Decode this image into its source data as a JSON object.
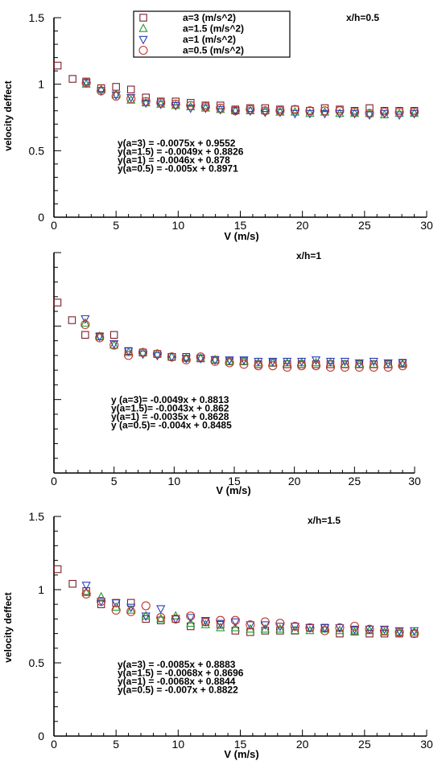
{
  "chart_data": [
    {
      "type": "scatter",
      "title": "x/h=0.5",
      "xlabel": "V (m/s)",
      "ylabel": "velocity deffect",
      "xlim": [
        0,
        30
      ],
      "ylim": [
        0,
        1.5
      ],
      "xticks": [
        0,
        5,
        10,
        15,
        20,
        25,
        30
      ],
      "yticks": [
        0,
        0.5,
        1,
        1.5
      ],
      "show_ytick_labels": true,
      "legend": {
        "position": "top",
        "entries": [
          "a=3 (m/s^2)",
          "a=1.5 (m/s^2)",
          "a=1 (m/s^2)",
          "a=0.5 (m/s^2)"
        ]
      },
      "equations": [
        "y(a=3) = -0.0075x + 0.9552",
        "y(a=1.5) = -0.0049x + 0.8826",
        "y(a=1) = -0.0046x + 0.878",
        "y(a=0.5) = -0.005x + 0.8971"
      ],
      "series": [
        {
          "name": "a=3 (m/s^2)",
          "marker": "square",
          "color": "#7a1f2b",
          "x": [
            0.3,
            1.5,
            2.6,
            3.8,
            5.0,
            6.2,
            7.4,
            8.6,
            9.8,
            11.0,
            12.2,
            13.4,
            14.6,
            15.8,
            17.0,
            18.2,
            19.4,
            20.6,
            21.8,
            23.0,
            24.2,
            25.4,
            26.6,
            27.8,
            29.0
          ],
          "y": [
            1.14,
            1.04,
            1.02,
            0.97,
            0.98,
            0.96,
            0.9,
            0.87,
            0.87,
            0.86,
            0.84,
            0.84,
            0.81,
            0.82,
            0.82,
            0.81,
            0.81,
            0.8,
            0.82,
            0.81,
            0.8,
            0.82,
            0.8,
            0.8,
            0.8
          ]
        },
        {
          "name": "a=1.5 (m/s^2)",
          "marker": "triangle-up",
          "color": "#1f9e2c",
          "x": [
            2.6,
            3.8,
            5.0,
            6.2,
            7.4,
            8.6,
            9.8,
            11.0,
            12.2,
            13.4,
            14.6,
            15.8,
            17.0,
            18.2,
            19.4,
            20.6,
            21.8,
            23.0,
            24.2,
            25.4,
            26.6,
            27.8,
            29.0
          ],
          "y": [
            1.0,
            0.96,
            0.92,
            0.88,
            0.86,
            0.85,
            0.84,
            0.83,
            0.82,
            0.81,
            0.8,
            0.8,
            0.8,
            0.79,
            0.79,
            0.78,
            0.79,
            0.78,
            0.78,
            0.78,
            0.77,
            0.78,
            0.78
          ]
        },
        {
          "name": "a=1 (m/s^2)",
          "marker": "triangle-down",
          "color": "#2c3fb8",
          "x": [
            2.6,
            3.8,
            5.0,
            6.2,
            7.4,
            8.6,
            9.8,
            11.0,
            12.2,
            13.4,
            14.6,
            15.8,
            17.0,
            18.2,
            19.4,
            20.6,
            21.8,
            23.0,
            24.2,
            25.4,
            26.6,
            27.8,
            29.0
          ],
          "y": [
            1.01,
            0.95,
            0.92,
            0.9,
            0.86,
            0.85,
            0.84,
            0.82,
            0.82,
            0.81,
            0.8,
            0.8,
            0.79,
            0.79,
            0.78,
            0.78,
            0.78,
            0.78,
            0.78,
            0.77,
            0.78,
            0.77,
            0.78
          ]
        },
        {
          "name": "a=0.5 (m/s^2)",
          "marker": "circle",
          "color": "#c0392b",
          "x": [
            2.6,
            3.8,
            5.0,
            6.2,
            7.4,
            8.6,
            9.8,
            11.0,
            12.2,
            13.4,
            14.6,
            15.8,
            17.0,
            18.2,
            19.4,
            20.6,
            21.8,
            23.0,
            24.2,
            25.4,
            26.6,
            27.8,
            29.0
          ],
          "y": [
            1.01,
            0.95,
            0.91,
            0.89,
            0.87,
            0.86,
            0.85,
            0.84,
            0.83,
            0.82,
            0.8,
            0.81,
            0.8,
            0.8,
            0.81,
            0.8,
            0.8,
            0.8,
            0.79,
            0.78,
            0.79,
            0.79,
            0.79
          ]
        }
      ]
    },
    {
      "type": "scatter",
      "title": "x/h=1",
      "xlabel": "V (m/s)",
      "ylabel": "",
      "xlim": [
        0,
        30
      ],
      "ylim": [
        0,
        1.5
      ],
      "xticks": [
        0,
        5,
        10,
        15,
        20,
        25,
        30
      ],
      "yticks": [
        0,
        0.5,
        1,
        1.5
      ],
      "show_ytick_labels": false,
      "equations": [
        "y (a=3)= -0.0049x + 0.8813",
        "y(a=1.5)= -0.0043x + 0.862",
        "y(a=1) = -0.0035x + 0.8628",
        "y (a=0.5)= -0.004x + 0.8485"
      ],
      "series": [
        {
          "name": "a=3 (m/s^2)",
          "marker": "square",
          "color": "#7a1f2b",
          "x": [
            0.3,
            1.5,
            2.6,
            3.8,
            5.0,
            6.2,
            7.4,
            8.6,
            9.8,
            11.0,
            12.2,
            13.4,
            14.6,
            15.8,
            17.0,
            18.2,
            19.4,
            20.6,
            21.8,
            23.0,
            24.2,
            25.4,
            26.6,
            27.8,
            29.0
          ],
          "y": [
            1.16,
            1.04,
            0.94,
            0.93,
            0.94,
            0.83,
            0.82,
            0.81,
            0.79,
            0.79,
            0.78,
            0.77,
            0.76,
            0.76,
            0.74,
            0.75,
            0.74,
            0.74,
            0.74,
            0.74,
            0.74,
            0.74,
            0.74,
            0.74,
            0.75
          ]
        },
        {
          "name": "a=1.5 (m/s^2)",
          "marker": "triangle-up",
          "color": "#1f9e2c",
          "x": [
            2.6,
            3.8,
            5.0,
            6.2,
            7.4,
            8.6,
            9.8,
            11.0,
            12.2,
            13.4,
            14.6,
            15.8,
            17.0,
            18.2,
            19.4,
            20.6,
            21.8,
            23.0,
            24.2,
            25.4,
            26.6,
            27.8,
            29.0
          ],
          "y": [
            1.02,
            0.93,
            0.87,
            0.82,
            0.82,
            0.81,
            0.79,
            0.78,
            0.78,
            0.77,
            0.76,
            0.76,
            0.75,
            0.75,
            0.75,
            0.75,
            0.75,
            0.75,
            0.74,
            0.74,
            0.74,
            0.74,
            0.74
          ]
        },
        {
          "name": "a=1 (m/s^2)",
          "marker": "triangle-down",
          "color": "#2c3fb8",
          "x": [
            2.6,
            3.8,
            5.0,
            6.2,
            7.4,
            8.6,
            9.8,
            11.0,
            12.2,
            13.4,
            14.6,
            15.8,
            17.0,
            18.2,
            19.4,
            20.6,
            21.8,
            23.0,
            24.2,
            25.4,
            26.6,
            27.8,
            29.0
          ],
          "y": [
            1.05,
            0.93,
            0.88,
            0.83,
            0.81,
            0.8,
            0.79,
            0.78,
            0.78,
            0.77,
            0.77,
            0.77,
            0.76,
            0.76,
            0.76,
            0.76,
            0.77,
            0.76,
            0.76,
            0.75,
            0.76,
            0.75,
            0.75
          ]
        },
        {
          "name": "a=0.5 (m/s^2)",
          "marker": "circle",
          "color": "#c0392b",
          "x": [
            2.6,
            3.8,
            5.0,
            6.2,
            7.4,
            8.6,
            9.8,
            11.0,
            12.2,
            13.4,
            14.6,
            15.8,
            17.0,
            18.2,
            19.4,
            20.6,
            21.8,
            23.0,
            24.2,
            25.4,
            26.6,
            27.8,
            29.0
          ],
          "y": [
            1.01,
            0.92,
            0.87,
            0.8,
            0.82,
            0.81,
            0.79,
            0.77,
            0.79,
            0.76,
            0.75,
            0.74,
            0.73,
            0.73,
            0.72,
            0.73,
            0.73,
            0.72,
            0.72,
            0.72,
            0.72,
            0.72,
            0.73
          ]
        }
      ]
    },
    {
      "type": "scatter",
      "title": "x/h=1.5",
      "xlabel": "V (m/s)",
      "ylabel": "velocity deffect",
      "xlim": [
        0,
        30
      ],
      "ylim": [
        0,
        1.5
      ],
      "xticks": [
        0,
        5,
        10,
        15,
        20,
        25,
        30
      ],
      "yticks": [
        0,
        0.5,
        1,
        1.5
      ],
      "show_ytick_labels": true,
      "equations": [
        "y(a=3) = -0.0085x + 0.8883",
        "y(a=1.5) = -0.0068x + 0.8696",
        "y(a=1) = -0.0068x + 0.8844",
        "y(a=0.5) = -0.007x + 0.8822"
      ],
      "series": [
        {
          "name": "a=3 (m/s^2)",
          "marker": "square",
          "color": "#7a1f2b",
          "x": [
            0.3,
            1.5,
            2.6,
            3.8,
            5.0,
            6.2,
            7.4,
            8.6,
            9.8,
            11.0,
            12.2,
            13.4,
            14.6,
            15.8,
            17.0,
            18.2,
            19.4,
            20.6,
            21.8,
            23.0,
            24.2,
            25.4,
            26.6,
            27.8,
            29.0
          ],
          "y": [
            1.14,
            1.04,
            0.99,
            0.9,
            0.91,
            0.91,
            0.8,
            0.79,
            0.8,
            0.75,
            0.78,
            0.76,
            0.72,
            0.71,
            0.72,
            0.72,
            0.72,
            0.74,
            0.74,
            0.7,
            0.72,
            0.7,
            0.7,
            0.7,
            0.7
          ]
        },
        {
          "name": "a=1.5 (m/s^2)",
          "marker": "triangle-up",
          "color": "#1f9e2c",
          "x": [
            2.6,
            3.8,
            5.0,
            6.2,
            7.4,
            8.6,
            9.8,
            11.0,
            12.2,
            13.4,
            14.6,
            15.8,
            17.0,
            18.2,
            19.4,
            20.6,
            21.8,
            23.0,
            24.2,
            25.4,
            26.6,
            27.8,
            29.0
          ],
          "y": [
            0.98,
            0.95,
            0.88,
            0.86,
            0.82,
            0.8,
            0.82,
            0.77,
            0.76,
            0.74,
            0.74,
            0.73,
            0.73,
            0.73,
            0.72,
            0.72,
            0.73,
            0.72,
            0.71,
            0.72,
            0.71,
            0.71,
            0.71
          ]
        },
        {
          "name": "a=1 (m/s^2)",
          "marker": "triangle-down",
          "color": "#2c3fb8",
          "x": [
            2.6,
            3.8,
            5.0,
            6.2,
            7.4,
            8.6,
            9.8,
            11.0,
            12.2,
            13.4,
            14.6,
            15.8,
            17.0,
            18.2,
            19.4,
            20.6,
            21.8,
            23.0,
            24.2,
            25.4,
            26.6,
            27.8,
            29.0
          ],
          "y": [
            1.03,
            0.92,
            0.91,
            0.88,
            0.82,
            0.87,
            0.8,
            0.81,
            0.79,
            0.77,
            0.78,
            0.76,
            0.76,
            0.75,
            0.75,
            0.74,
            0.74,
            0.74,
            0.73,
            0.73,
            0.73,
            0.72,
            0.72
          ]
        },
        {
          "name": "a=0.5 (m/s^2)",
          "marker": "circle",
          "color": "#c0392b",
          "x": [
            2.6,
            3.8,
            5.0,
            6.2,
            7.4,
            8.6,
            9.8,
            11.0,
            12.2,
            13.4,
            14.6,
            15.8,
            17.0,
            18.2,
            19.4,
            20.6,
            21.8,
            23.0,
            24.2,
            25.4,
            26.6,
            27.8,
            29.0
          ],
          "y": [
            0.97,
            0.92,
            0.86,
            0.85,
            0.89,
            0.81,
            0.8,
            0.82,
            0.78,
            0.79,
            0.79,
            0.76,
            0.78,
            0.77,
            0.75,
            0.74,
            0.72,
            0.74,
            0.75,
            0.73,
            0.72,
            0.71,
            0.7
          ]
        }
      ]
    }
  ]
}
